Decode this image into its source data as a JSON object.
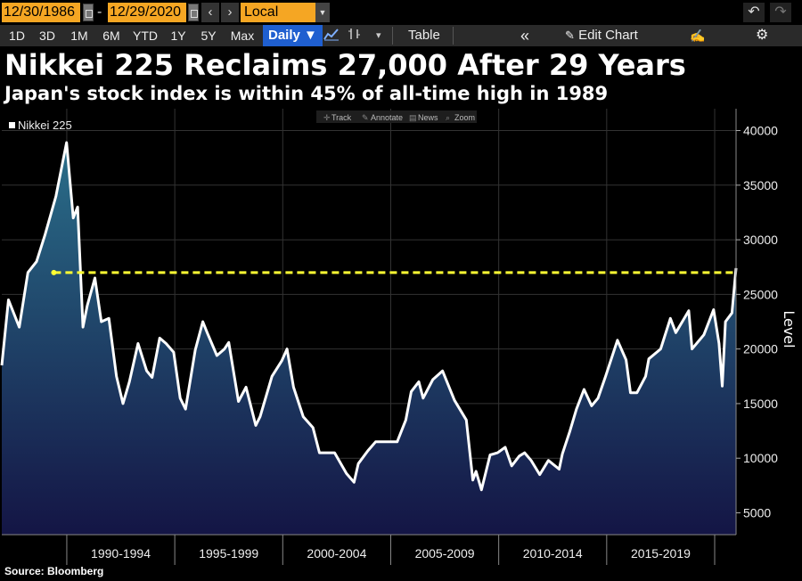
{
  "toolbar": {
    "start_date": "12/30/1986",
    "end_date": "12/29/2020",
    "date_separator": "-",
    "prev_label": "‹",
    "next_label": "›",
    "currency": "Local CCY",
    "currency_dropdown": "▼",
    "undo_label": "↶",
    "redo_label": "↷",
    "ranges": [
      "1D",
      "3D",
      "1M",
      "6M",
      "YTD",
      "1Y",
      "5Y",
      "Max"
    ],
    "frequency": "Daily ▼",
    "line_chart_icon": "line-chart-icon",
    "bar_chart_icon": "ohlc-bar-icon",
    "chart_type_dropdown": "▾",
    "table_label": "Table",
    "collapse_label": "«",
    "edit_chart_label": "Edit Chart",
    "edit_chart_icon": "pencil-icon",
    "annotate_icon": "draw-icon",
    "settings_icon": "gear-icon"
  },
  "headline": {
    "title": "Nikkei 225 Reclaims 27,000 After 29 Years",
    "subtitle": "Japan's stock index is within 45% of all-time high in 1989"
  },
  "chart_toolbar": [
    "Track",
    "Annotate",
    "News",
    "Zoom"
  ],
  "source": "Source: Bloomberg",
  "chart_data": {
    "type": "area",
    "series": [
      {
        "name": "Nikkei 225",
        "color": "#ffffff",
        "fill_top": "#2a6f8a",
        "fill_bottom": "#141545",
        "x": [
          1986.99,
          1987.3,
          1987.8,
          1988.2,
          1988.6,
          1989.0,
          1989.5,
          1989.99,
          1990.3,
          1990.5,
          1990.75,
          1990.95,
          1991.3,
          1991.6,
          1991.95,
          1992.3,
          1992.6,
          1992.9,
          1993.3,
          1993.7,
          1993.95,
          1994.3,
          1994.6,
          1994.95,
          1995.25,
          1995.5,
          1995.95,
          1996.3,
          1996.5,
          1996.95,
          1997.3,
          1997.5,
          1997.95,
          1998.3,
          1998.75,
          1998.95,
          1999.5,
          1999.95,
          2000.2,
          2000.5,
          2000.95,
          2001.4,
          2001.7,
          2001.95,
          2002.4,
          2002.95,
          2003.3,
          2003.5,
          2003.95,
          2004.3,
          2004.9,
          2005.3,
          2005.7,
          2005.95,
          2006.3,
          2006.5,
          2006.95,
          2007.4,
          2007.95,
          2008.5,
          2008.8,
          2008.95,
          2009.2,
          2009.6,
          2009.95,
          2010.3,
          2010.6,
          2010.95,
          2011.2,
          2011.5,
          2011.9,
          2012.3,
          2012.8,
          2012.95,
          2013.3,
          2013.6,
          2013.95,
          2014.3,
          2014.6,
          2014.95,
          2015.5,
          2015.9,
          2016.1,
          2016.4,
          2016.8,
          2016.95,
          2017.5,
          2017.95,
          2018.2,
          2018.8,
          2018.95,
          2019.5,
          2019.95,
          2020.2,
          2020.35,
          2020.5,
          2020.8,
          2020.99
        ],
        "y": [
          18500,
          24500,
          22000,
          27000,
          28000,
          30500,
          34000,
          38900,
          32000,
          33000,
          22000,
          24000,
          26500,
          22500,
          22800,
          17500,
          15000,
          17000,
          20500,
          18000,
          17400,
          21000,
          20500,
          19700,
          15500,
          14500,
          19900,
          22500,
          21500,
          19400,
          20000,
          20600,
          15200,
          16500,
          13000,
          13800,
          17500,
          18900,
          20000,
          16500,
          13800,
          12800,
          10500,
          10500,
          10500,
          8600,
          7800,
          9500,
          10700,
          11500,
          11500,
          11500,
          13500,
          16100,
          17000,
          15500,
          17200,
          18000,
          15300,
          13500,
          8000,
          8800,
          7100,
          10300,
          10500,
          11000,
          9300,
          10200,
          10500,
          9800,
          8500,
          9800,
          9000,
          10400,
          12500,
          14500,
          16300,
          14800,
          15500,
          17500,
          20800,
          19000,
          16000,
          16000,
          17500,
          19100,
          20000,
          22800,
          21500,
          23500,
          20000,
          21300,
          23600,
          20500,
          16600,
          22500,
          23300,
          27400
        ]
      }
    ],
    "reference_line": {
      "value": 27000,
      "color": "#ffff33",
      "style": "dashed",
      "from_x": 1989.4
    },
    "x_tick_labels": [
      "1990-1994",
      "1995-1999",
      "2000-2004",
      "2005-2009",
      "2010-2014",
      "2015-2019"
    ],
    "x_tick_boundaries": [
      1990,
      1995,
      2000,
      2005,
      2010,
      2015,
      2020
    ],
    "xlim": [
      1986.99,
      2020.99
    ],
    "yticks": [
      5000,
      10000,
      15000,
      20000,
      25000,
      30000,
      35000,
      40000
    ],
    "ylim": [
      3000,
      42000
    ],
    "ylabel": "Level",
    "legend": "Nikkei 225",
    "legend_position": "top-left",
    "grid": true,
    "background": "#000000",
    "grid_color": "#333333"
  }
}
